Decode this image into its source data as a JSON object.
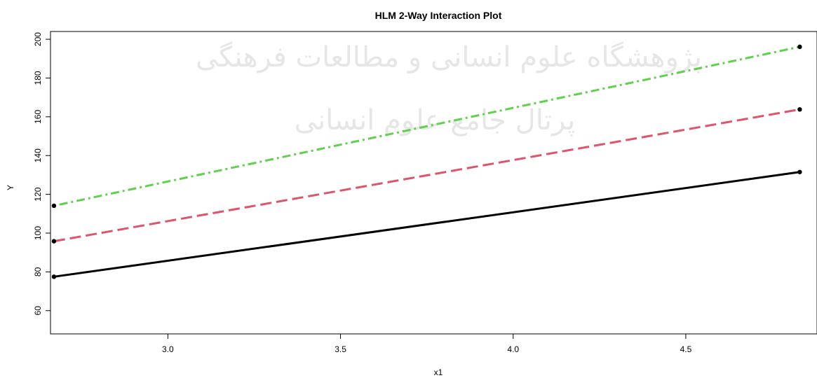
{
  "chart_data": {
    "type": "line",
    "title": "HLM 2-Way Interaction Plot",
    "xlabel": "x1",
    "ylabel": "Y",
    "xlim": [
      2.66,
      4.88
    ],
    "ylim": [
      48,
      204
    ],
    "xticks": [
      "3.0",
      "3.5",
      "4.0",
      "4.5"
    ],
    "xtick_values": [
      3.0,
      3.5,
      4.0,
      4.5
    ],
    "yticks": [
      "60",
      "80",
      "100",
      "120",
      "140",
      "160",
      "180",
      "200"
    ],
    "ytick_values": [
      60,
      80,
      100,
      120,
      140,
      160,
      180,
      200
    ],
    "grid": false,
    "legend": "none",
    "series": [
      {
        "x": [
          2.67,
          4.83
        ],
        "values": [
          77.5,
          131.5
        ],
        "color": "#000000",
        "dash": "solid"
      },
      {
        "x": [
          2.67,
          4.83
        ],
        "values": [
          95.8,
          163.8
        ],
        "color": "#DF536B",
        "dash": "dashed"
      },
      {
        "x": [
          2.67,
          4.83
        ],
        "values": [
          114.1,
          196.1
        ],
        "color": "#61D04F",
        "dash": "dotdash"
      }
    ]
  },
  "watermark": {
    "line1": "پژوهشگاه علوم انسانی و مطالعات فرهنگی",
    "line2": "پرتال جامع علوم انسانی"
  }
}
